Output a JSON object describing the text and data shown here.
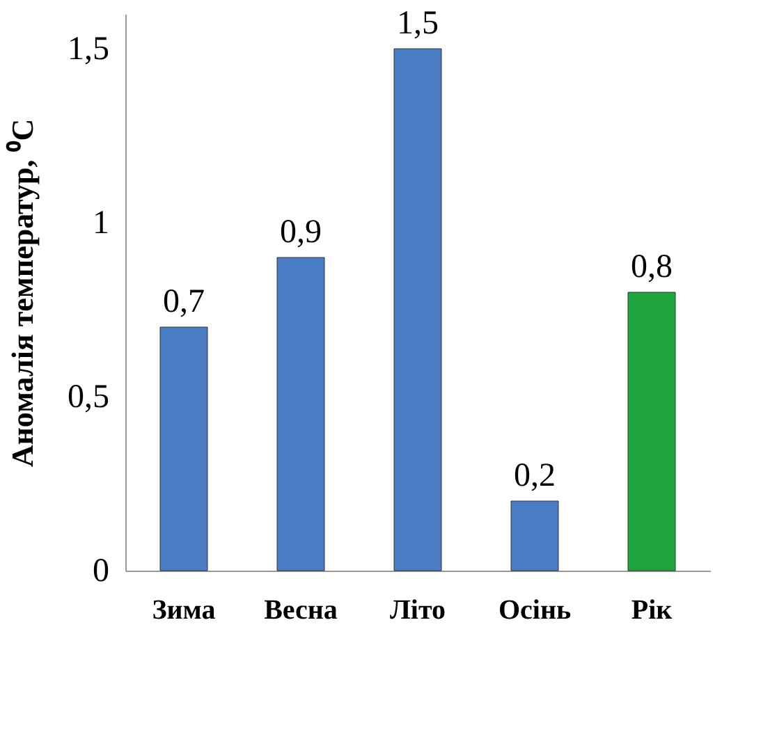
{
  "chart_data": {
    "type": "bar",
    "ylabel": "Аномалія температур, ⁰C",
    "categories": [
      "Зима",
      "Весна",
      "Літо",
      "Осінь",
      "Рік"
    ],
    "values": [
      0.7,
      0.9,
      1.5,
      0.2,
      0.8
    ],
    "colors": [
      "#4a7cc4",
      "#4a7cc4",
      "#4a7cc4",
      "#4a7cc4",
      "#1fa53d"
    ],
    "value_labels": [
      "0,7",
      "0,9",
      "1,5",
      "0,2",
      "0,8"
    ],
    "ylim": [
      0,
      1.6
    ],
    "yticks": [
      0,
      {
        "value": 0.5,
        "label": "0,5"
      },
      1,
      {
        "value": 1.5,
        "label": "1,5"
      }
    ],
    "grid": false
  }
}
